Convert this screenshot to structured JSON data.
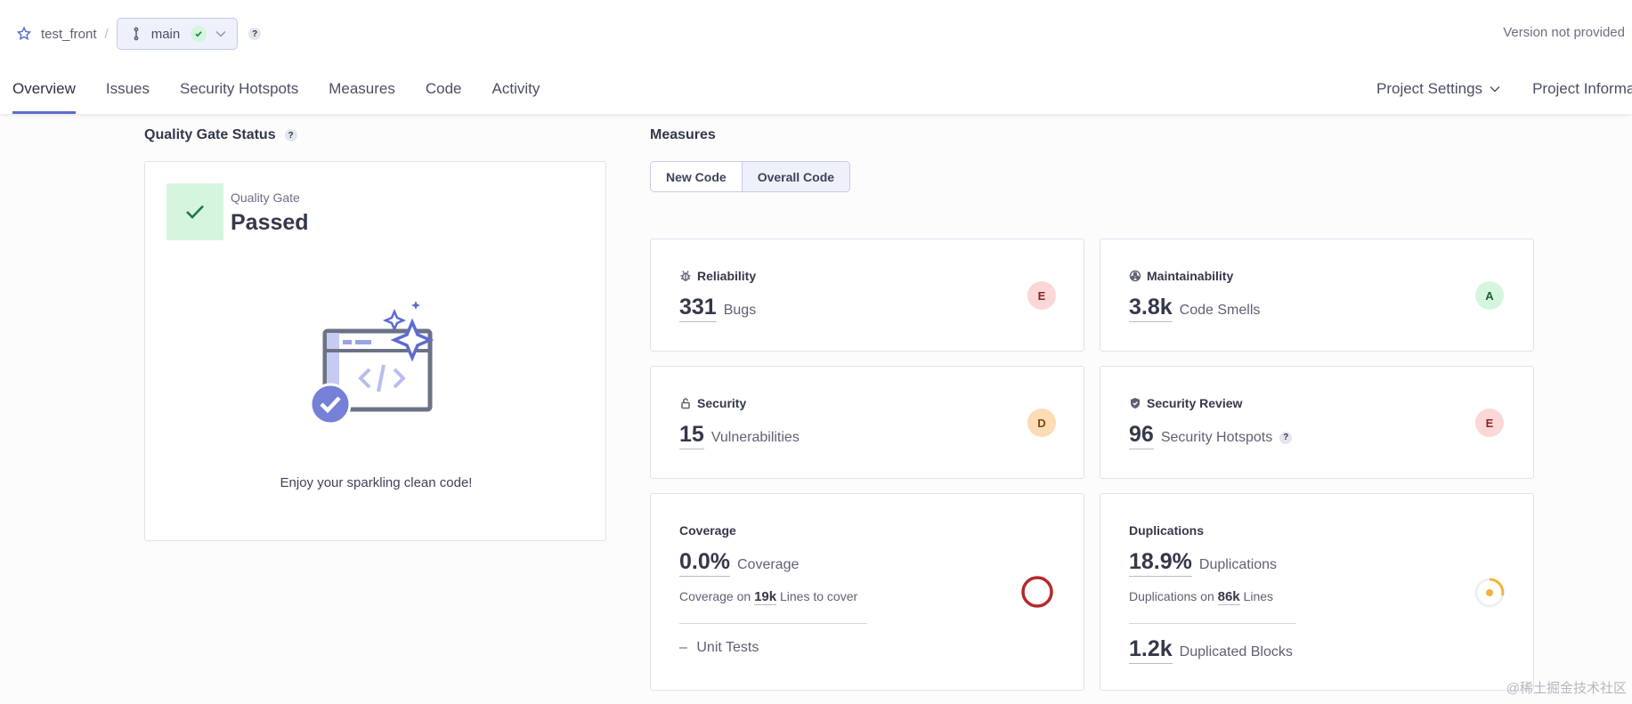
{
  "header": {
    "project": "test_front",
    "separator": "/",
    "branch": "main",
    "branch_help": "?",
    "version": "Version not provided"
  },
  "nav": {
    "tabs": [
      {
        "label": "Overview",
        "active": true
      },
      {
        "label": "Issues"
      },
      {
        "label": "Security Hotspots"
      },
      {
        "label": "Measures"
      },
      {
        "label": "Code"
      },
      {
        "label": "Activity"
      }
    ],
    "project_settings": "Project Settings",
    "project_information": "Project Informa"
  },
  "quality_gate": {
    "title": "Quality Gate Status",
    "help": "?",
    "label": "Quality Gate",
    "status": "Passed",
    "message": "Enjoy your sparkling clean code!"
  },
  "measures": {
    "title": "Measures",
    "toggle": {
      "new_code": "New Code",
      "overall_code": "Overall Code",
      "selected": "Overall Code"
    },
    "reliability": {
      "title": "Reliability",
      "value": "331",
      "unit": "Bugs",
      "rating": "E"
    },
    "maintainability": {
      "title": "Maintainability",
      "value": "3.8k",
      "unit": "Code Smells",
      "rating": "A"
    },
    "security": {
      "title": "Security",
      "value": "15",
      "unit": "Vulnerabilities",
      "rating": "D"
    },
    "security_review": {
      "title": "Security Review",
      "value": "96",
      "unit": "Security Hotspots",
      "help": "?",
      "rating": "E"
    },
    "coverage": {
      "title": "Coverage",
      "value": "0.0%",
      "unit": "Coverage",
      "sub_prefix": "Coverage on",
      "sub_value": "19k",
      "sub_suffix": "Lines to cover",
      "unit_tests_dash": "–",
      "unit_tests": "Unit Tests"
    },
    "duplications": {
      "title": "Duplications",
      "value": "18.9%",
      "unit": "Duplications",
      "sub_prefix": "Duplications on",
      "sub_value": "86k",
      "sub_suffix": "Lines",
      "blocks_value": "1.2k",
      "blocks_unit": "Duplicated Blocks"
    }
  },
  "colors": {
    "accent": "#5d6cd0",
    "passed_bg": "#d6f5df",
    "rating_e_bg": "#fbd7d7",
    "rating_a_bg": "#d6f5df",
    "rating_d_bg": "#fcdcb4",
    "coverage_ring": "#b5272a",
    "duplication_ring": "#f2b33d"
  },
  "watermark": "@稀土掘金技术社区"
}
